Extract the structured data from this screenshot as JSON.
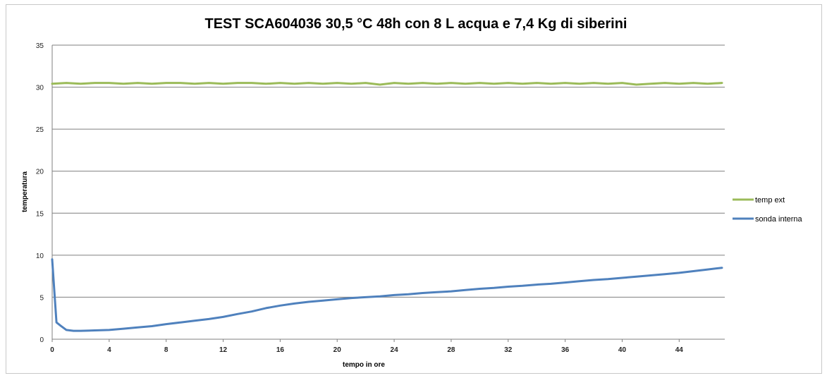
{
  "chart_data": {
    "type": "line",
    "title": "TEST SCA604036 30,5 °C  48h  con 8 L acqua e 7,4 Kg di siberini",
    "xlabel": "tempo in ore",
    "ylabel": "temperatura",
    "xlim": [
      0,
      47.2
    ],
    "ylim": [
      0,
      35
    ],
    "x_ticks": [
      0,
      4,
      8,
      12,
      16,
      20,
      24,
      28,
      32,
      36,
      40,
      44
    ],
    "y_ticks": [
      0,
      5,
      10,
      15,
      20,
      25,
      30,
      35
    ],
    "grid": "horizontal",
    "legend_position": "right",
    "colors": {
      "temp_ext": "#9BBB59",
      "sonda_interna": "#4F81BD",
      "grid": "#7f7f7f"
    },
    "series": [
      {
        "name": "temp ext",
        "color": "#9BBB59",
        "x": [
          0,
          1,
          2,
          3,
          4,
          5,
          6,
          7,
          8,
          9,
          10,
          11,
          12,
          13,
          14,
          15,
          16,
          17,
          18,
          19,
          20,
          21,
          22,
          23,
          24,
          25,
          26,
          27,
          28,
          29,
          30,
          31,
          32,
          33,
          34,
          35,
          36,
          37,
          38,
          39,
          40,
          41,
          42,
          43,
          44,
          45,
          46,
          47
        ],
        "y": [
          30.4,
          30.5,
          30.4,
          30.5,
          30.5,
          30.4,
          30.5,
          30.4,
          30.5,
          30.5,
          30.4,
          30.5,
          30.4,
          30.5,
          30.5,
          30.4,
          30.5,
          30.4,
          30.5,
          30.4,
          30.5,
          30.4,
          30.5,
          30.3,
          30.5,
          30.4,
          30.5,
          30.4,
          30.5,
          30.4,
          30.5,
          30.4,
          30.5,
          30.4,
          30.5,
          30.4,
          30.5,
          30.4,
          30.5,
          30.4,
          30.5,
          30.3,
          30.4,
          30.5,
          30.4,
          30.5,
          30.4,
          30.5
        ]
      },
      {
        "name": "sonda interna",
        "color": "#4F81BD",
        "x": [
          0,
          0.3,
          0.6,
          1,
          1.5,
          2,
          3,
          4,
          5,
          6,
          7,
          8,
          9,
          10,
          11,
          12,
          13,
          14,
          15,
          16,
          17,
          18,
          19,
          20,
          21,
          22,
          23,
          24,
          25,
          26,
          27,
          28,
          29,
          30,
          31,
          32,
          33,
          34,
          35,
          36,
          37,
          38,
          39,
          40,
          41,
          42,
          43,
          44,
          45,
          46,
          47
        ],
        "y": [
          9.5,
          2.0,
          1.6,
          1.1,
          1.0,
          1.0,
          1.05,
          1.1,
          1.25,
          1.4,
          1.55,
          1.8,
          2.0,
          2.2,
          2.4,
          2.65,
          3.0,
          3.3,
          3.7,
          4.0,
          4.25,
          4.45,
          4.6,
          4.75,
          4.9,
          5.0,
          5.1,
          5.25,
          5.35,
          5.5,
          5.6,
          5.7,
          5.85,
          6.0,
          6.1,
          6.25,
          6.35,
          6.5,
          6.6,
          6.75,
          6.9,
          7.05,
          7.15,
          7.3,
          7.45,
          7.6,
          7.75,
          7.9,
          8.1,
          8.3,
          8.5
        ]
      }
    ]
  }
}
